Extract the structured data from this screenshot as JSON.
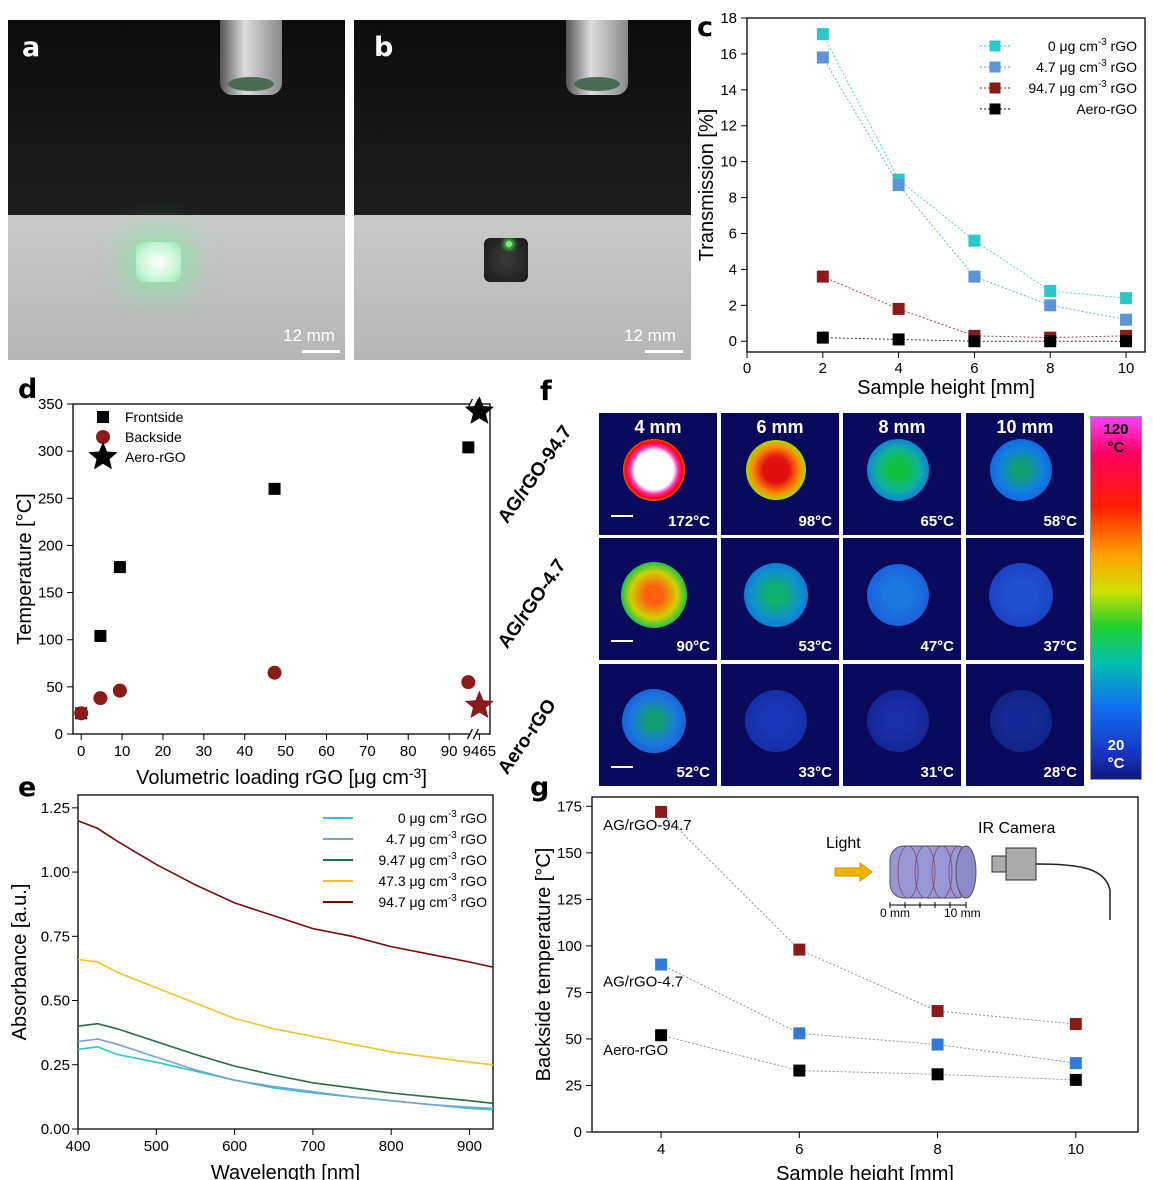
{
  "panels": {
    "a": {
      "label": "a",
      "scale_label": "12 mm"
    },
    "b": {
      "label": "b",
      "scale_label": "12 mm"
    },
    "c": {
      "label": "c"
    },
    "d": {
      "label": "d"
    },
    "e": {
      "label": "e"
    },
    "f": {
      "label": "f"
    },
    "g": {
      "label": "g"
    }
  },
  "panel_f": {
    "columns": [
      "4 mm",
      "6 mm",
      "8 mm",
      "10 mm"
    ],
    "rows": [
      {
        "label": "AG/rGO-94.7",
        "temps": [
          "172°C",
          "98°C",
          "65°C",
          "58°C"
        ]
      },
      {
        "label": "AG/rGO-4.7",
        "temps": [
          "90°C",
          "53°C",
          "47°C",
          "37°C"
        ]
      },
      {
        "label": "Aero-rGO",
        "temps": [
          "52°C",
          "33°C",
          "31°C",
          "28°C"
        ]
      }
    ],
    "colorbar": {
      "max": "120",
      "min": "20",
      "unit": "°C"
    }
  },
  "chart_data": [
    {
      "panel": "c",
      "type": "line",
      "xlabel": "Sample height [mm]",
      "ylabel": "Transmission [%]",
      "xlim": [
        0,
        10.5
      ],
      "ylim": [
        -0.6,
        18
      ],
      "xticks": [
        0,
        2,
        4,
        6,
        8,
        10
      ],
      "yticks": [
        0,
        2,
        4,
        6,
        8,
        10,
        12,
        14,
        16,
        18
      ],
      "legend": "top-right",
      "x": [
        2,
        4,
        6,
        8,
        10
      ],
      "series": [
        {
          "name_pre": "0 μg cm",
          "name_sup": "-3",
          "name_post": " rGO",
          "color": "#2ec7c9",
          "values": [
            17.1,
            9.0,
            5.6,
            2.8,
            2.4
          ]
        },
        {
          "name_pre": "4.7 μg cm",
          "name_sup": "-3",
          "name_post": " rGO",
          "color": "#5b95d5",
          "values": [
            15.8,
            8.7,
            3.6,
            2.0,
            1.2
          ]
        },
        {
          "name_pre": "94.7 μg cm",
          "name_sup": "-3",
          "name_post": " rGO",
          "color": "#8b1a1a",
          "values": [
            3.6,
            1.8,
            0.3,
            0.2,
            0.3
          ]
        },
        {
          "name_pre": "Aero-rGO",
          "name_sup": "",
          "name_post": "",
          "color": "#000000",
          "values": [
            0.2,
            0.1,
            0.0,
            0.0,
            0.0
          ]
        }
      ]
    },
    {
      "panel": "d",
      "type": "scatter",
      "xlabel_pre": "Volumetric loading rGO [μg cm",
      "xlabel_sup": "-3",
      "xlabel_post": "]",
      "ylabel": "Temperature [°C]",
      "xlim": [
        -2,
        100
      ],
      "ylim": [
        0,
        350
      ],
      "xticks": [
        "0",
        "10",
        "20",
        "30",
        "40",
        "50",
        "60",
        "70",
        "80",
        "90",
        "9465"
      ],
      "yticks": [
        0,
        50,
        100,
        150,
        200,
        250,
        300,
        350
      ],
      "legend": "top-left",
      "series": [
        {
          "name": "Frontside",
          "marker": "square",
          "color": "#000000",
          "x": [
            0,
            4.7,
            9.47,
            47.3,
            94.7
          ],
          "values": [
            22,
            104,
            177,
            260,
            304
          ]
        },
        {
          "name": "Backside",
          "marker": "circle",
          "color": "#8b1a1a",
          "x": [
            0,
            4.7,
            9.47,
            47.3,
            94.7
          ],
          "values": [
            22,
            38,
            46,
            65,
            55
          ]
        },
        {
          "name": "Aero-rGO",
          "marker": "star",
          "color": "#000000",
          "x": [
            "9465",
            "9465"
          ],
          "values": [
            342,
            30
          ],
          "colors": [
            "#000000",
            "#8b1a1a"
          ]
        }
      ]
    },
    {
      "panel": "e",
      "type": "line",
      "xlabel": "Wavelength [nm]",
      "ylabel": "Absorbance [a.u.]",
      "xlim": [
        400,
        930
      ],
      "ylim": [
        0,
        1.3
      ],
      "xticks": [
        400,
        500,
        600,
        700,
        800,
        900
      ],
      "yticks": [
        "0.00",
        "0.25",
        "0.50",
        "0.75",
        "1.00",
        "1.25"
      ],
      "legend": "top-right",
      "x": [
        400,
        425,
        450,
        500,
        550,
        600,
        650,
        700,
        750,
        800,
        850,
        900,
        930
      ],
      "series": [
        {
          "name_pre": "0 μg cm",
          "name_sup": "-3",
          "name_post": " rGO",
          "color": "#2ec7c9",
          "values": [
            0.31,
            0.32,
            0.29,
            0.26,
            0.225,
            0.19,
            0.16,
            0.14,
            0.125,
            0.11,
            0.095,
            0.08,
            0.075
          ]
        },
        {
          "name_pre": "4.7 μg cm",
          "name_sup": "-3",
          "name_post": " rGO",
          "color": "#7aa3cf",
          "values": [
            0.34,
            0.35,
            0.33,
            0.28,
            0.23,
            0.19,
            0.165,
            0.145,
            0.125,
            0.11,
            0.095,
            0.085,
            0.08
          ]
        },
        {
          "name_pre": "9.47 μg cm",
          "name_sup": "-3",
          "name_post": " rGO",
          "color": "#2b6b45",
          "values": [
            0.4,
            0.41,
            0.39,
            0.34,
            0.29,
            0.245,
            0.21,
            0.18,
            0.16,
            0.14,
            0.125,
            0.11,
            0.1
          ]
        },
        {
          "name_pre": "47.3 μg cm",
          "name_sup": "-3",
          "name_post": " rGO",
          "color": "#f2c12e",
          "values": [
            0.66,
            0.65,
            0.61,
            0.55,
            0.49,
            0.43,
            0.39,
            0.36,
            0.33,
            0.3,
            0.28,
            0.26,
            0.25
          ]
        },
        {
          "name_pre": "94.7 μg cm",
          "name_sup": "-3",
          "name_post": " rGO",
          "color": "#7a0a0a",
          "values": [
            1.2,
            1.17,
            1.12,
            1.03,
            0.95,
            0.88,
            0.83,
            0.78,
            0.75,
            0.71,
            0.68,
            0.65,
            0.63
          ]
        }
      ]
    },
    {
      "panel": "g",
      "type": "line",
      "xlabel": "Sample height [mm]",
      "ylabel": "Backside temperature [°C]",
      "xlim": [
        3.0,
        10.9
      ],
      "ylim": [
        0,
        180
      ],
      "xticks": [
        4,
        6,
        8,
        10
      ],
      "yticks": [
        0,
        25,
        50,
        75,
        100,
        125,
        150,
        175
      ],
      "x": [
        4,
        6,
        8,
        10
      ],
      "series": [
        {
          "name": "AG/rGO-94.7",
          "color": "#8b1a1a",
          "values": [
            172,
            98,
            65,
            58
          ]
        },
        {
          "name": "AG/rGO-4.7",
          "color": "#2f7bdc",
          "values": [
            90,
            53,
            47,
            37
          ]
        },
        {
          "name": "Aero-rGO",
          "color": "#000000",
          "values": [
            52,
            33,
            31,
            28
          ]
        }
      ],
      "inset": {
        "light_label": "Light",
        "camera_label": "IR Camera",
        "scale_min": "0 mm",
        "scale_max": "10 mm"
      }
    }
  ]
}
